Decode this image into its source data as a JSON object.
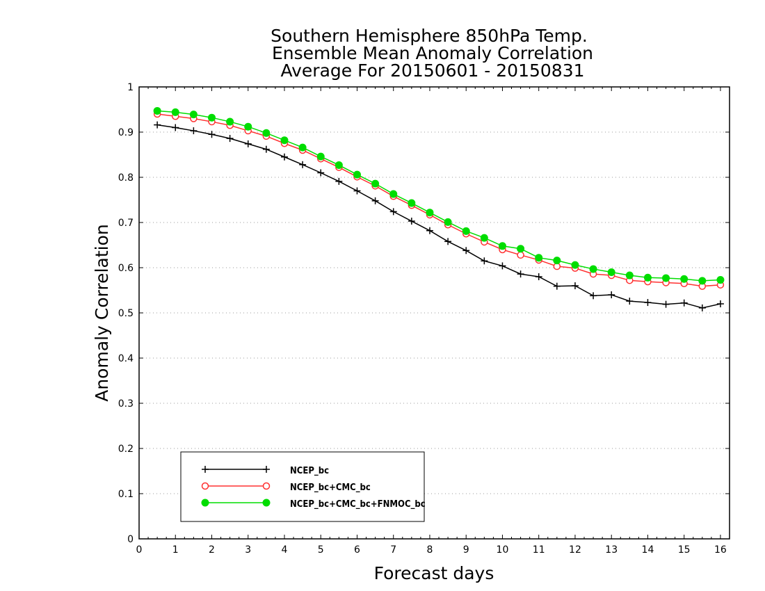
{
  "chart_data": {
    "type": "line",
    "title_lines": [
      "Southern Hemisphere 850hPa Temp.",
      "Ensemble Mean Anomaly Correlation",
      "Average For 20150601 - 20150831"
    ],
    "xlabel": "Forecast days",
    "ylabel": "Anomaly Correlation",
    "xlim": [
      0,
      16.25
    ],
    "ylim": [
      0,
      1
    ],
    "x_ticks": [
      0,
      1,
      2,
      3,
      4,
      5,
      6,
      7,
      8,
      9,
      10,
      11,
      12,
      13,
      14,
      15,
      16
    ],
    "y_ticks": [
      0,
      0.1,
      0.2,
      0.3,
      0.4,
      0.5,
      0.6,
      0.7,
      0.8,
      0.9,
      1
    ],
    "y_tick_labels": [
      "0",
      "0.1",
      "0.2",
      "0.3",
      "0.4",
      "0.5",
      "0.6",
      "0.7",
      "0.8",
      "0.9",
      "1"
    ],
    "grid": true,
    "legend_position": "bottom-left",
    "x": [
      0.5,
      1.0,
      1.5,
      2.0,
      2.5,
      3.0,
      3.5,
      4.0,
      4.5,
      5.0,
      5.5,
      6.0,
      6.5,
      7.0,
      7.5,
      8.0,
      8.5,
      9.0,
      9.5,
      10.0,
      10.5,
      11.0,
      11.5,
      12.0,
      12.5,
      13.0,
      13.5,
      14.0,
      14.5,
      15.0,
      15.5,
      16.0
    ],
    "series": [
      {
        "name": "NCEP_bc",
        "color": "#000000",
        "marker": "plus",
        "values": [
          0.916,
          0.91,
          0.903,
          0.895,
          0.886,
          0.874,
          0.862,
          0.845,
          0.828,
          0.81,
          0.791,
          0.77,
          0.748,
          0.724,
          0.703,
          0.682,
          0.658,
          0.638,
          0.615,
          0.604,
          0.586,
          0.58,
          0.559,
          0.56,
          0.538,
          0.54,
          0.526,
          0.523,
          0.519,
          0.522,
          0.511,
          0.52
        ]
      },
      {
        "name": "NCEP_bc+CMC_bc",
        "color": "#ff3030",
        "marker": "open-circle",
        "values": [
          0.94,
          0.935,
          0.93,
          0.923,
          0.915,
          0.903,
          0.891,
          0.875,
          0.86,
          0.841,
          0.822,
          0.801,
          0.781,
          0.758,
          0.738,
          0.717,
          0.695,
          0.675,
          0.657,
          0.64,
          0.628,
          0.617,
          0.603,
          0.599,
          0.586,
          0.583,
          0.572,
          0.569,
          0.567,
          0.565,
          0.559,
          0.562
        ]
      },
      {
        "name": "NCEP_bc+CMC_bc+FNMOC_bc",
        "color": "#00dd00",
        "marker": "filled-circle",
        "values": [
          0.947,
          0.944,
          0.939,
          0.932,
          0.923,
          0.912,
          0.898,
          0.882,
          0.866,
          0.846,
          0.827,
          0.806,
          0.786,
          0.763,
          0.743,
          0.722,
          0.701,
          0.681,
          0.666,
          0.648,
          0.642,
          0.622,
          0.616,
          0.606,
          0.597,
          0.59,
          0.583,
          0.578,
          0.577,
          0.575,
          0.571,
          0.573
        ]
      }
    ]
  }
}
